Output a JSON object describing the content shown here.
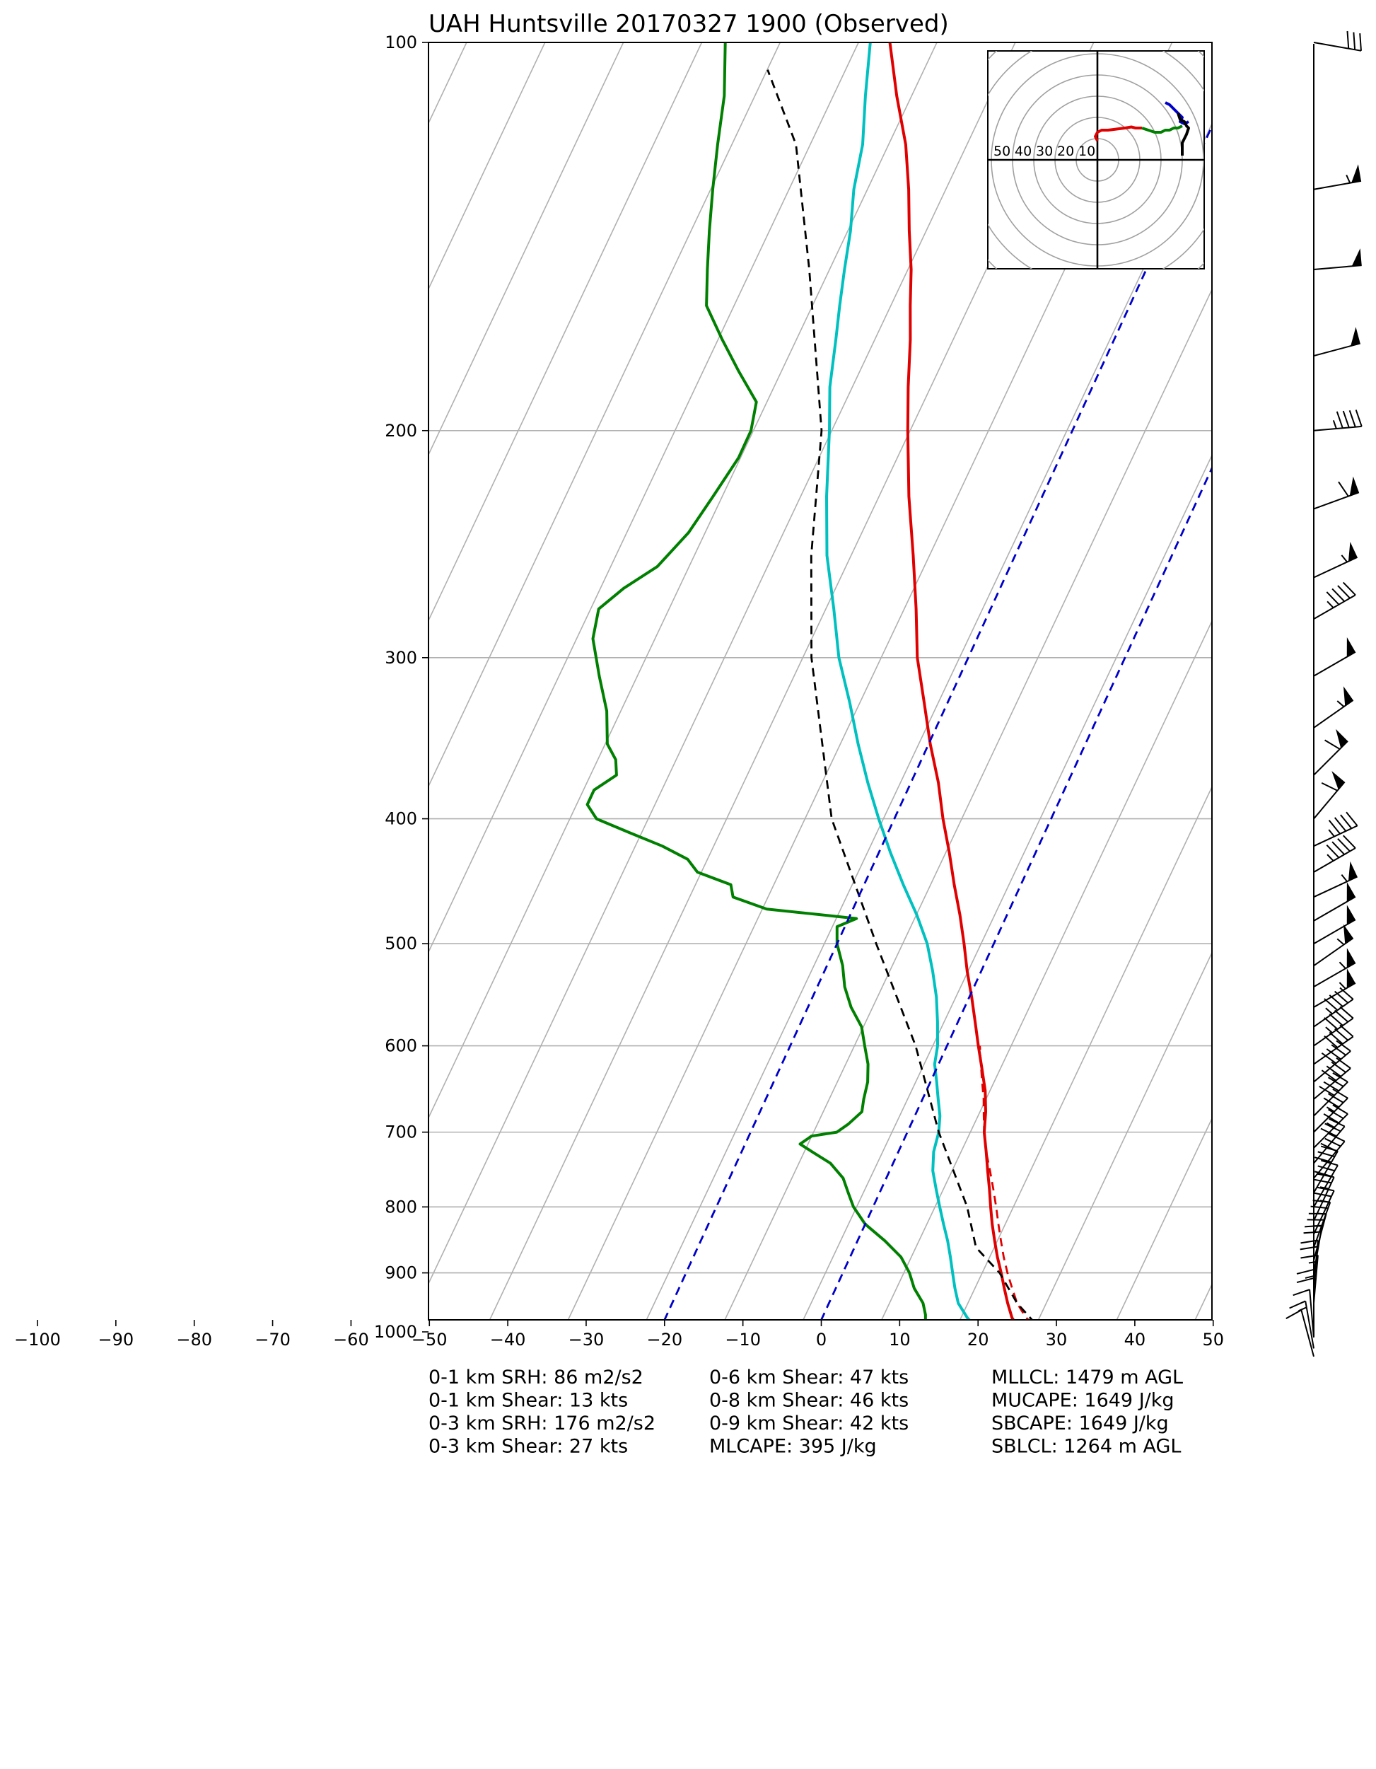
{
  "chart_data": {
    "type": "line",
    "title": "UAH Huntsville 20170327 1900   (Observed)",
    "xlabel": "",
    "ylabel": "",
    "xlim": [
      -100,
      50
    ],
    "ylim": [
      1050,
      100
    ],
    "y_scale": "log",
    "skew_t": true,
    "grid": true,
    "x_ticks": [
      -100,
      -90,
      -80,
      -70,
      -60,
      -50,
      -40,
      -30,
      -20,
      -10,
      0,
      10,
      20,
      30,
      40,
      50
    ],
    "x_tick_labels": [
      "−100",
      "−90",
      "−80",
      "−70",
      "−60",
      "−50",
      "−40",
      "−30",
      "−20",
      "−10",
      "0",
      "10",
      "20",
      "30",
      "40",
      "50"
    ],
    "y_ticks": [
      100,
      200,
      300,
      400,
      500,
      600,
      700,
      800,
      900,
      1000
    ],
    "y_tick_labels": [
      "100",
      "200",
      "300",
      "400",
      "500",
      "600",
      "700",
      "800",
      "900",
      "1000"
    ],
    "series": [
      {
        "color": "#e00000",
        "style": "solid",
        "pressure": [
          985,
          975,
          950,
          925,
          900,
          875,
          850,
          825,
          800,
          775,
          750,
          725,
          700,
          675,
          650,
          625,
          600,
          575,
          550,
          525,
          500,
          475,
          450,
          425,
          400,
          375,
          350,
          325,
          300,
          275,
          250,
          225,
          200,
          185,
          170,
          160,
          150,
          140,
          130,
          120,
          110,
          100
        ],
        "values": [
          25,
          24.2,
          22.8,
          21.5,
          20.2,
          18.8,
          17.5,
          16.2,
          15,
          13.8,
          12.5,
          11.2,
          9.8,
          8.8,
          7.5,
          5.8,
          4,
          2.2,
          0.3,
          -1.8,
          -3.8,
          -6,
          -8.5,
          -11,
          -13.8,
          -16.5,
          -19.8,
          -23,
          -26.5,
          -29.5,
          -33,
          -37,
          -41,
          -43.5,
          -46,
          -48,
          -50,
          -52.5,
          -55,
          -58,
          -62,
          -66
        ]
      },
      {
        "color": "#00c0c0",
        "style": "solid",
        "pressure": [
          985,
          975,
          950,
          925,
          900,
          875,
          850,
          825,
          800,
          775,
          750,
          725,
          700,
          680,
          660,
          640,
          620,
          600,
          575,
          550,
          525,
          500,
          475,
          450,
          425,
          400,
          375,
          350,
          325,
          300,
          275,
          250,
          225,
          200,
          185,
          170,
          160,
          150,
          140,
          130,
          120,
          110,
          100
        ],
        "values": [
          19.5,
          18.5,
          16.5,
          15.2,
          14,
          12.8,
          11.5,
          10,
          8.5,
          7,
          5.5,
          4.5,
          4,
          3.2,
          2,
          0.8,
          -0.5,
          -1.2,
          -2.6,
          -4.2,
          -6.2,
          -8.5,
          -11.5,
          -15,
          -18.5,
          -22,
          -25.5,
          -29,
          -32.5,
          -36.5,
          -40,
          -44,
          -47.5,
          -51,
          -53.5,
          -55.5,
          -57,
          -58.5,
          -60,
          -62,
          -63.5,
          -66,
          -68.5
        ]
      },
      {
        "color": "#008000",
        "style": "solid",
        "pressure": [
          985,
          970,
          950,
          925,
          900,
          875,
          850,
          825,
          800,
          780,
          760,
          740,
          725,
          715,
          705,
          700,
          690,
          675,
          660,
          640,
          620,
          600,
          580,
          560,
          540,
          520,
          500,
          485,
          478,
          470,
          460,
          450,
          440,
          430,
          420,
          410,
          400,
          390,
          380,
          370,
          360,
          350,
          330,
          310,
          290,
          275,
          265,
          255,
          240,
          225,
          210,
          200,
          190,
          180,
          170,
          160,
          150,
          140,
          130,
          120,
          110,
          100
        ],
        "values": [
          13.5,
          13,
          12,
          10,
          8.5,
          6.5,
          3.5,
          0,
          -2.5,
          -4,
          -5.5,
          -8,
          -11,
          -13,
          -12,
          -9,
          -8,
          -7,
          -7.5,
          -8,
          -9,
          -10.5,
          -12,
          -14.5,
          -16.5,
          -18,
          -20,
          -21,
          -19,
          -31,
          -36,
          -37,
          -42,
          -44,
          -48,
          -53,
          -58,
          -60,
          -60,
          -58,
          -59,
          -61,
          -63,
          -66,
          -69,
          -70,
          -68,
          -65,
          -63,
          -62,
          -61,
          -61,
          -62,
          -66,
          -70,
          -74,
          -76,
          -78,
          -80,
          -82,
          -84,
          -87
        ]
      },
      {
        "color": "#e00000",
        "style": "dashed",
        "pressure": [
          985,
          975,
          950,
          925,
          900,
          875,
          850,
          825,
          800,
          775,
          750,
          725,
          700,
          680,
          660,
          640,
          620,
          600
        ],
        "values": [
          27.2,
          26,
          24,
          22.5,
          21,
          19.6,
          18.3,
          17,
          15.7,
          14.3,
          12.8,
          11.2,
          9.8,
          8.8,
          7.8,
          6.6,
          5.4,
          4.2
        ]
      },
      {
        "color": "#000000",
        "style": "dashed",
        "pressure": [
          985,
          950,
          900,
          860,
          800,
          700,
          600,
          500,
          400,
          300,
          250,
          200,
          150,
          120,
          105
        ],
        "values": [
          27.5,
          24,
          20,
          15.5,
          12,
          4,
          -4,
          -15,
          -28,
          -40,
          -46,
          -52,
          -63,
          -72,
          -80
        ]
      },
      {
        "color": "#0000c8",
        "style": "dashed",
        "pressure": [
          1050,
          100
        ],
        "values": [
          -20,
          -20
        ]
      },
      {
        "color": "#0000c8",
        "style": "dashed",
        "pressure": [
          1050,
          100
        ],
        "values": [
          0,
          0
        ]
      }
    ],
    "hodograph": {
      "ring_labels": [
        "50",
        "40",
        "30",
        "20",
        "10"
      ],
      "traces": [
        {
          "color": "#e00000",
          "u": [
            0,
            -1,
            0,
            2,
            5,
            9,
            13,
            16,
            18,
            21
          ],
          "v": [
            9,
            11,
            13,
            14,
            14,
            14.5,
            15,
            15.5,
            15,
            15
          ]
        },
        {
          "color": "#008000",
          "u": [
            21,
            24,
            27,
            30,
            32,
            34,
            36,
            38,
            40
          ],
          "v": [
            15,
            14,
            13,
            13,
            14,
            14,
            15,
            15,
            16
          ]
        },
        {
          "color": "#0000c8",
          "u": [
            32,
            34,
            36,
            38,
            39,
            40,
            39,
            41,
            43
          ],
          "v": [
            27,
            26,
            24,
            22,
            21,
            20,
            18,
            17,
            18
          ]
        },
        {
          "color": "#000000",
          "u": [
            38,
            39,
            41,
            42,
            43,
            42,
            41,
            40,
            40
          ],
          "v": [
            22,
            19,
            18,
            16,
            15,
            12,
            10,
            8,
            2
          ]
        }
      ]
    },
    "barbs": [
      {
        "p": 100,
        "s": 30,
        "d": 280
      },
      {
        "p": 130,
        "s": 55,
        "d": 260
      },
      {
        "p": 150,
        "s": 50,
        "d": 265
      },
      {
        "p": 175,
        "s": 50,
        "d": 255
      },
      {
        "p": 200,
        "s": 45,
        "d": 265
      },
      {
        "p": 230,
        "s": 60,
        "d": 250
      },
      {
        "p": 260,
        "s": 55,
        "d": 245
      },
      {
        "p": 280,
        "s": 45,
        "d": 240
      },
      {
        "p": 310,
        "s": 50,
        "d": 240
      },
      {
        "p": 340,
        "s": 55,
        "d": 235
      },
      {
        "p": 370,
        "s": 60,
        "d": 225
      },
      {
        "p": 400,
        "s": 60,
        "d": 220
      },
      {
        "p": 420,
        "s": 45,
        "d": 245
      },
      {
        "p": 440,
        "s": 45,
        "d": 240
      },
      {
        "p": 460,
        "s": 55,
        "d": 245
      },
      {
        "p": 480,
        "s": 50,
        "d": 240
      },
      {
        "p": 500,
        "s": 50,
        "d": 240
      },
      {
        "p": 520,
        "s": 55,
        "d": 235
      },
      {
        "p": 540,
        "s": 55,
        "d": 240
      },
      {
        "p": 560,
        "s": 55,
        "d": 240
      },
      {
        "p": 580,
        "s": 45,
        "d": 235
      },
      {
        "p": 600,
        "s": 45,
        "d": 235
      },
      {
        "p": 620,
        "s": 40,
        "d": 235
      },
      {
        "p": 640,
        "s": 40,
        "d": 230
      },
      {
        "p": 660,
        "s": 40,
        "d": 230
      },
      {
        "p": 680,
        "s": 40,
        "d": 225
      },
      {
        "p": 700,
        "s": 35,
        "d": 225
      },
      {
        "p": 720,
        "s": 35,
        "d": 225
      },
      {
        "p": 740,
        "s": 30,
        "d": 220
      },
      {
        "p": 760,
        "s": 30,
        "d": 220
      },
      {
        "p": 780,
        "s": 30,
        "d": 210
      },
      {
        "p": 800,
        "s": 30,
        "d": 210
      },
      {
        "p": 820,
        "s": 25,
        "d": 205
      },
      {
        "p": 840,
        "s": 25,
        "d": 205
      },
      {
        "p": 860,
        "s": 25,
        "d": 200
      },
      {
        "p": 880,
        "s": 25,
        "d": 195
      },
      {
        "p": 900,
        "s": 20,
        "d": 190
      },
      {
        "p": 925,
        "s": 20,
        "d": 185
      },
      {
        "p": 950,
        "s": 15,
        "d": 185
      },
      {
        "p": 975,
        "s": 15,
        "d": 180
      },
      {
        "p": 990,
        "s": 10,
        "d": 180
      },
      {
        "p": 1010,
        "s": 10,
        "d": 175
      },
      {
        "p": 1030,
        "s": 15,
        "d": 170
      },
      {
        "p": 1045,
        "s": 10,
        "d": 165
      }
    ]
  },
  "stats": {
    "col1": [
      "0-1 km SRH: 86 m2/s2",
      "0-1 km Shear: 13 kts",
      "0-3 km SRH: 176 m2/s2",
      "0-3 km Shear: 27 kts"
    ],
    "col2": [
      "0-6 km Shear: 47 kts",
      "0-8 km Shear: 46 kts",
      "0-9 km Shear: 42 kts",
      "MLCAPE: 395 J/kg"
    ],
    "col3": [
      "MLLCL: 1479 m AGL",
      "MUCAPE: 1649 J/kg",
      "SBCAPE: 1649 J/kg",
      "SBLCL: 1264 m AGL"
    ]
  }
}
